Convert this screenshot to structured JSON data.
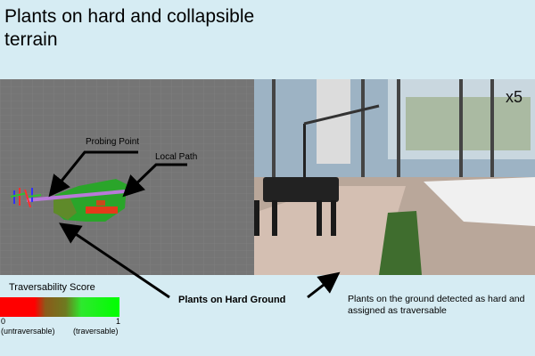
{
  "title": "Plants on hard and collapsible terrain",
  "viz": {
    "probing_point_label": "Probing Point",
    "local_path_label": "Local Path"
  },
  "photo": {
    "speed_label": "x5"
  },
  "legend": {
    "title": "Traversability Score",
    "min_value": "0",
    "max_value": "1",
    "min_desc": "(untraversable)",
    "max_desc": "(traversable)",
    "colors": {
      "low": "#ff0000",
      "mid": "#6e7a20",
      "high": "#00ff00"
    }
  },
  "callout": "Plants on Hard Ground",
  "caption": "Plants on the ground detected as hard and assigned as traversable"
}
